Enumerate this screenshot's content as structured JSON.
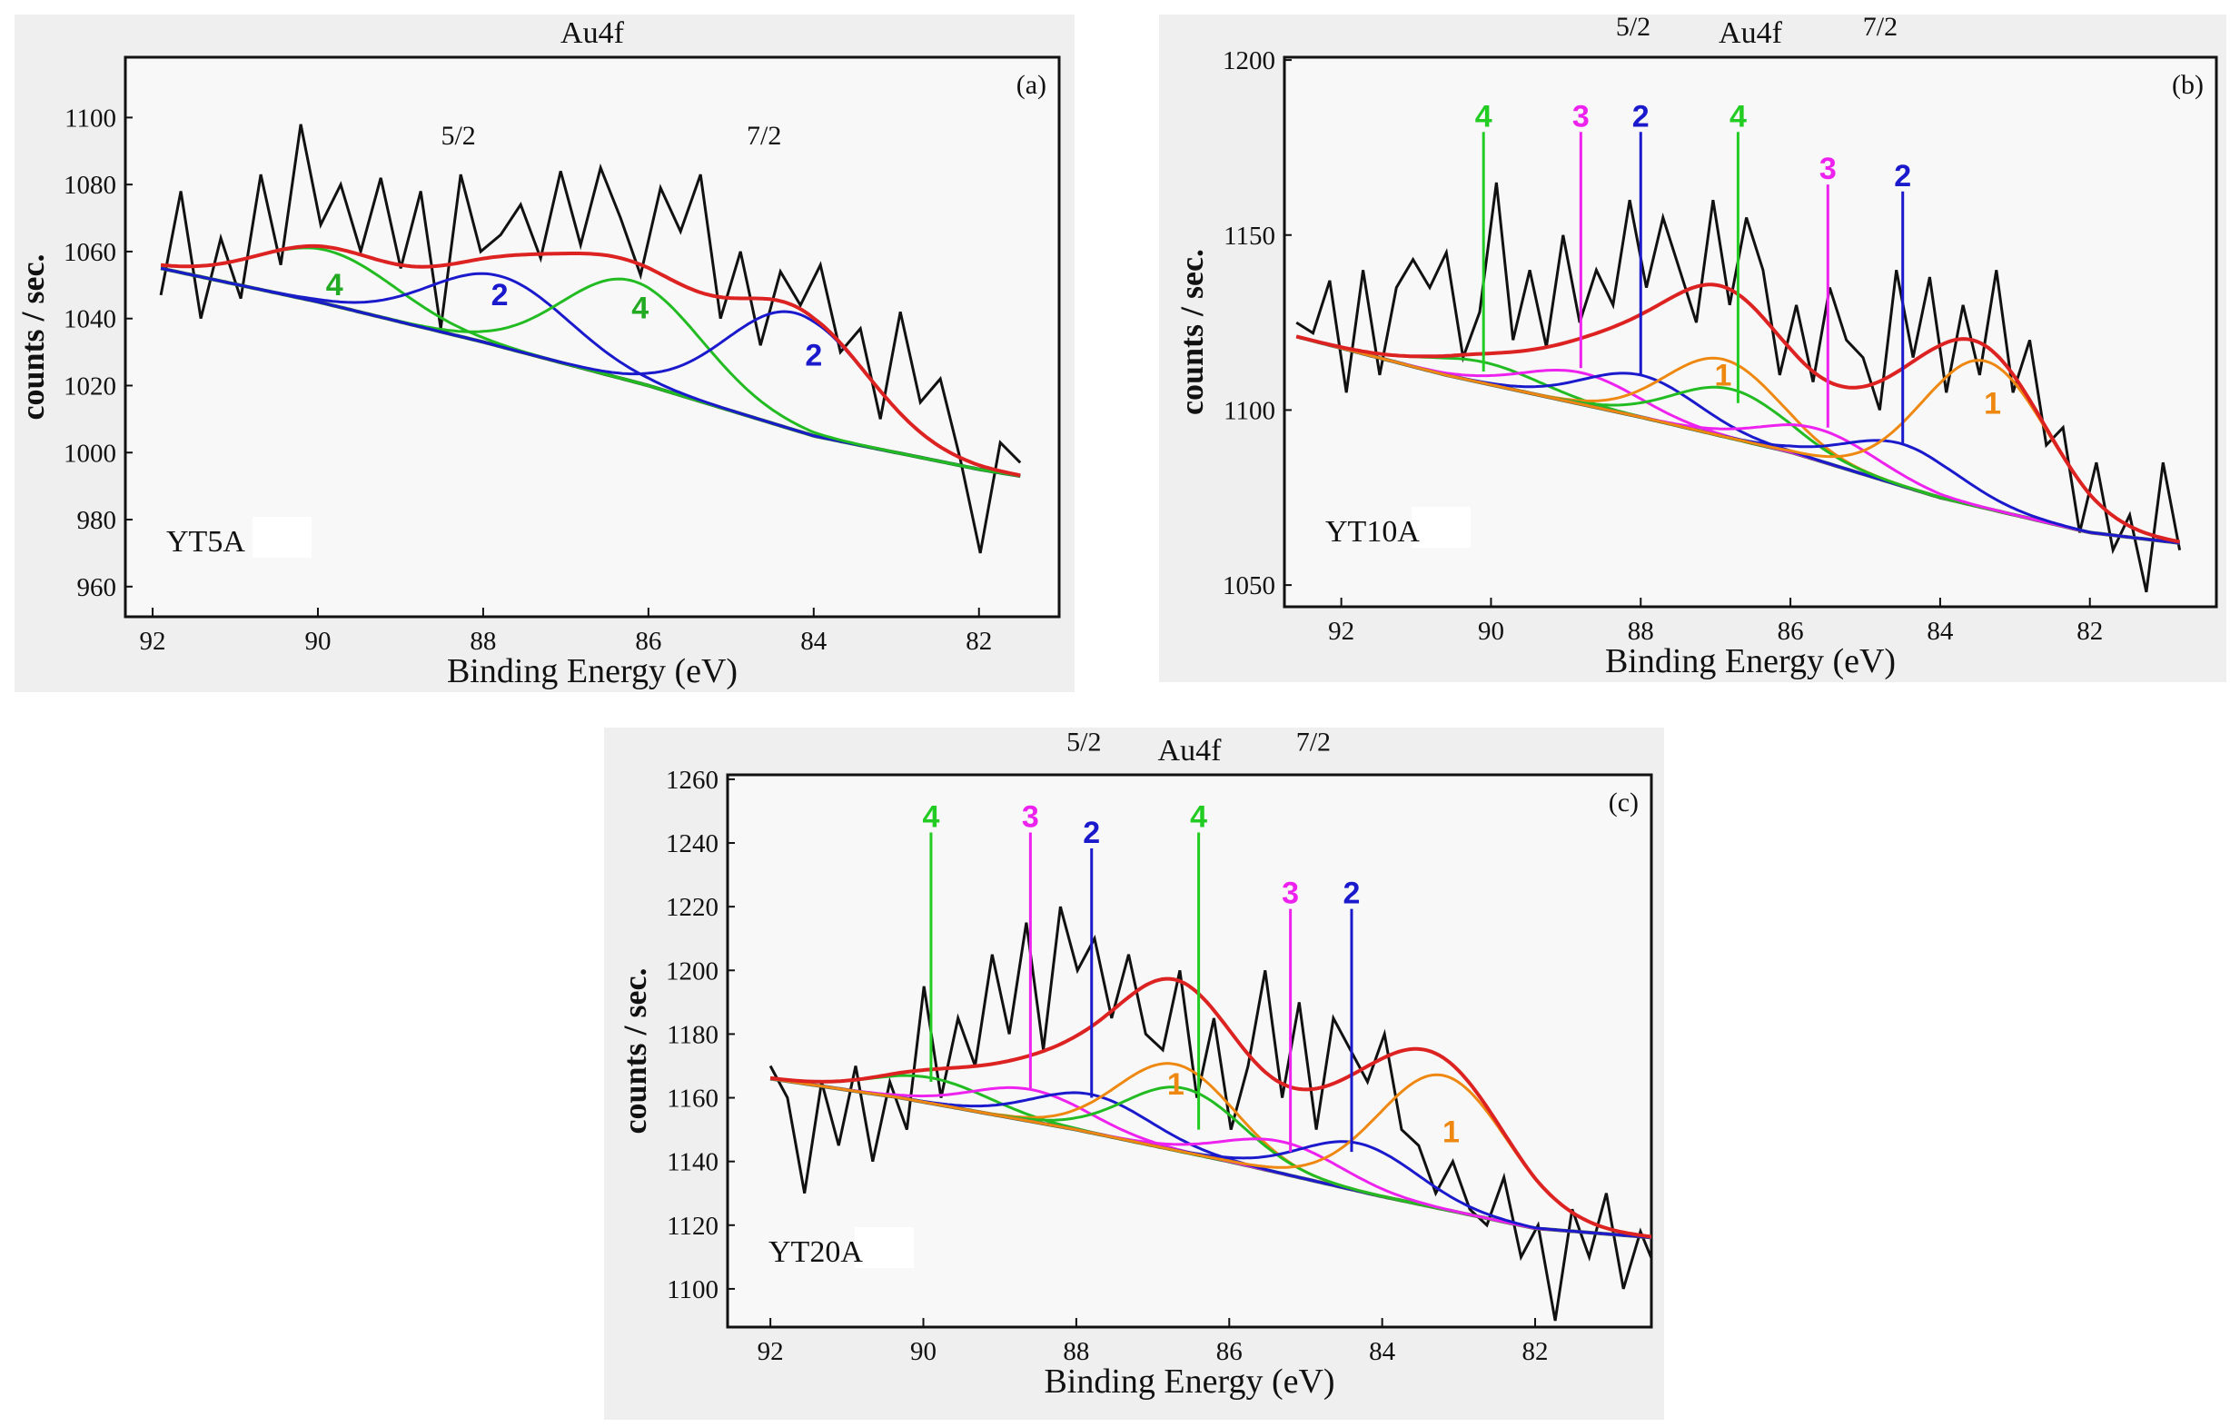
{
  "chart_data": [
    {
      "type": "line",
      "panel_label": "(a)",
      "title": "Au4f",
      "xlabel": "Binding Energy (eV)",
      "ylabel": "counts / sec.",
      "sample": "YT5A",
      "xlim": [
        92.33,
        81.03
      ],
      "ylim": [
        951,
        1118
      ],
      "xticks": [
        92,
        90,
        88,
        86,
        84,
        82
      ],
      "yticks": [
        960,
        980,
        1000,
        1020,
        1040,
        1060,
        1080,
        1100
      ],
      "annotations": [
        {
          "text": "5/2",
          "x": 88.3,
          "y": 1092
        },
        {
          "text": "7/2",
          "x": 84.6,
          "y": 1092
        }
      ],
      "raw_counts": {
        "x_range": [
          91.9,
          81.5
        ],
        "y": [
          1047,
          1078,
          1040,
          1064,
          1046,
          1083,
          1056,
          1098,
          1068,
          1080,
          1060,
          1082,
          1055,
          1078,
          1037,
          1083,
          1060,
          1065,
          1074,
          1058,
          1084,
          1062,
          1085,
          1070,
          1053,
          1079,
          1066,
          1083,
          1040,
          1060,
          1032,
          1054,
          1044,
          1056,
          1030,
          1037,
          1010,
          1042,
          1015,
          1022,
          998,
          970,
          1003,
          997
        ]
      },
      "baseline": {
        "x": [
          91.9,
          90,
          88,
          86,
          84,
          82,
          81.5
        ],
        "y": [
          1055,
          1045,
          1033,
          1020,
          1005,
          995,
          993
        ]
      },
      "components": [
        {
          "id": "4",
          "center": 89.9,
          "height": 16,
          "fwhm": 2.0,
          "color": "#22bb22"
        },
        {
          "id": "2",
          "center": 87.8,
          "height": 21,
          "fwhm": 2.0,
          "color": "#1a1acc"
        },
        {
          "id": "4",
          "center": 86.2,
          "height": 30,
          "fwhm": 2.0,
          "color": "#22bb22"
        },
        {
          "id": "2",
          "center": 84.2,
          "height": 35,
          "fwhm": 2.0,
          "color": "#1a1acc"
        }
      ],
      "envelope_color": "#dd2222",
      "peak_labels": [
        {
          "text": "4",
          "x": 89.8,
          "y": 1047,
          "color": "#22aa22"
        },
        {
          "text": "2",
          "x": 87.8,
          "y": 1044,
          "color": "#1a1acc"
        },
        {
          "text": "4",
          "x": 86.1,
          "y": 1040,
          "color": "#22aa22"
        },
        {
          "text": "2",
          "x": 84.0,
          "y": 1026,
          "color": "#1a1acc"
        }
      ]
    },
    {
      "type": "line",
      "panel_label": "(b)",
      "title": "Au4f",
      "xlabel": "Binding Energy (eV)",
      "ylabel": "counts / sec.",
      "sample": "YT10A",
      "xlim": [
        92.76,
        80.31
      ],
      "ylim": [
        1043.8,
        1200.8
      ],
      "xticks": [
        92,
        90,
        88,
        86,
        84,
        82
      ],
      "yticks": [
        1050,
        1100,
        1150,
        1200
      ],
      "annotations": [
        {
          "text": "5/2",
          "x": 88.1,
          "y": 1207
        },
        {
          "text": "7/2",
          "x": 84.8,
          "y": 1207
        }
      ],
      "raw_counts": {
        "x_range": [
          92.6,
          80.8
        ],
        "y": [
          1125,
          1122,
          1137,
          1105,
          1140,
          1110,
          1135,
          1143,
          1135,
          1145,
          1115,
          1128,
          1165,
          1120,
          1140,
          1118,
          1150,
          1125,
          1140,
          1130,
          1160,
          1135,
          1155,
          1140,
          1125,
          1160,
          1130,
          1155,
          1140,
          1110,
          1130,
          1108,
          1135,
          1120,
          1115,
          1100,
          1140,
          1115,
          1138,
          1105,
          1130,
          1110,
          1140,
          1105,
          1120,
          1090,
          1095,
          1065,
          1085,
          1060,
          1070,
          1048,
          1085,
          1060
        ]
      },
      "baseline": {
        "x": [
          92.6,
          90.6,
          88,
          86,
          84,
          82,
          80.8
        ],
        "y": [
          1121,
          1110,
          1098,
          1088,
          1075,
          1065,
          1062
        ]
      },
      "components": [
        {
          "id": "4",
          "center": 90.1,
          "height": 6,
          "fwhm": 1.8,
          "color": "#22bb22"
        },
        {
          "id": "3",
          "center": 88.8,
          "height": 9,
          "fwhm": 1.8,
          "color": "#ee22ee"
        },
        {
          "id": "2",
          "center": 88.0,
          "height": 12,
          "fwhm": 1.8,
          "color": "#1a1acc"
        },
        {
          "id": "1",
          "center": 86.9,
          "height": 22,
          "fwhm": 1.8,
          "color": "#ee8811"
        },
        {
          "id": "4",
          "center": 86.8,
          "height": 14,
          "fwhm": 1.8,
          "color": "#22bb22"
        },
        {
          "id": "3",
          "center": 85.6,
          "height": 9,
          "fwhm": 1.8,
          "color": "#ee22ee"
        },
        {
          "id": "2",
          "center": 84.5,
          "height": 12,
          "fwhm": 1.8,
          "color": "#1a1acc"
        },
        {
          "id": "1",
          "center": 83.4,
          "height": 42,
          "fwhm": 2.0,
          "color": "#ee8811"
        }
      ],
      "envelope_color": "#dd2222",
      "peak_labels": [
        {
          "text": "4",
          "x": 90.1,
          "y": 1181,
          "line_to": 1111,
          "color": "#22cc22"
        },
        {
          "text": "3",
          "x": 88.8,
          "y": 1181,
          "line_to": 1112,
          "color": "#ee22ee"
        },
        {
          "text": "2",
          "x": 88.0,
          "y": 1181,
          "line_to": 1110,
          "color": "#1a1acc"
        },
        {
          "text": "4",
          "x": 86.7,
          "y": 1181,
          "line_to": 1102,
          "color": "#22cc22"
        },
        {
          "text": "3",
          "x": 85.5,
          "y": 1166,
          "line_to": 1095,
          "color": "#ee22ee"
        },
        {
          "text": "2",
          "x": 84.5,
          "y": 1164,
          "line_to": 1090,
          "color": "#1a1acc"
        },
        {
          "text": "1",
          "x": 86.9,
          "y": 1107,
          "color": "#ee8811"
        },
        {
          "text": "1",
          "x": 83.3,
          "y": 1099,
          "color": "#ee8811"
        }
      ]
    },
    {
      "type": "line",
      "panel_label": "(c)",
      "title": "Au4f",
      "xlabel": "Binding Energy (eV)",
      "ylabel": "counts / sec.",
      "sample": "YT20A",
      "xlim": [
        92.56,
        80.48
      ],
      "ylim": [
        1088,
        1261.4
      ],
      "xticks": [
        92,
        90,
        88,
        86,
        84,
        82
      ],
      "yticks": [
        1100,
        1120,
        1140,
        1160,
        1180,
        1200,
        1220,
        1240,
        1260
      ],
      "annotations": [
        {
          "text": "5/2",
          "x": 87.9,
          "y": 1269
        },
        {
          "text": "7/2",
          "x": 84.9,
          "y": 1269
        }
      ],
      "raw_counts": {
        "x_range": [
          92.0,
          80.4
        ],
        "y": [
          1170,
          1160,
          1130,
          1165,
          1145,
          1170,
          1140,
          1165,
          1150,
          1195,
          1160,
          1185,
          1170,
          1205,
          1180,
          1215,
          1175,
          1220,
          1200,
          1210,
          1185,
          1205,
          1180,
          1175,
          1200,
          1160,
          1185,
          1150,
          1170,
          1200,
          1160,
          1190,
          1150,
          1185,
          1175,
          1165,
          1180,
          1150,
          1145,
          1130,
          1140,
          1125,
          1120,
          1135,
          1110,
          1120,
          1090,
          1125,
          1110,
          1130,
          1100,
          1118,
          1105
        ]
      },
      "baseline": {
        "x": [
          92,
          90.3,
          88,
          86,
          84,
          82,
          80.4
        ],
        "y": [
          1166,
          1160,
          1150,
          1140,
          1129,
          1119,
          1116
        ]
      },
      "components": [
        {
          "id": "4",
          "center": 89.9,
          "height": 8,
          "fwhm": 1.8,
          "color": "#22bb22"
        },
        {
          "id": "3",
          "center": 88.6,
          "height": 10,
          "fwhm": 1.8,
          "color": "#ee22ee"
        },
        {
          "id": "2",
          "center": 87.8,
          "height": 12,
          "fwhm": 1.8,
          "color": "#1a1acc"
        },
        {
          "id": "1",
          "center": 86.7,
          "height": 27,
          "fwhm": 1.8,
          "color": "#ee8811"
        },
        {
          "id": "4",
          "center": 86.6,
          "height": 20,
          "fwhm": 1.8,
          "color": "#22bb22"
        },
        {
          "id": "3",
          "center": 85.3,
          "height": 10,
          "fwhm": 1.8,
          "color": "#ee22ee"
        },
        {
          "id": "2",
          "center": 84.3,
          "height": 15,
          "fwhm": 1.8,
          "color": "#1a1acc"
        },
        {
          "id": "1",
          "center": 83.2,
          "height": 42,
          "fwhm": 2.0,
          "color": "#ee8811"
        }
      ],
      "envelope_color": "#dd2222",
      "peak_labels": [
        {
          "text": "4",
          "x": 89.9,
          "y": 1245,
          "line_to": 1165,
          "color": "#22cc22"
        },
        {
          "text": "3",
          "x": 88.6,
          "y": 1245,
          "line_to": 1163,
          "color": "#ee22ee"
        },
        {
          "text": "2",
          "x": 87.8,
          "y": 1240,
          "line_to": 1160,
          "color": "#1a1acc"
        },
        {
          "text": "4",
          "x": 86.4,
          "y": 1245,
          "line_to": 1150,
          "color": "#22cc22"
        },
        {
          "text": "3",
          "x": 85.2,
          "y": 1221,
          "line_to": 1143,
          "color": "#ee22ee"
        },
        {
          "text": "2",
          "x": 84.4,
          "y": 1221,
          "line_to": 1143,
          "color": "#1a1acc"
        },
        {
          "text": "1",
          "x": 86.7,
          "y": 1161,
          "color": "#ee8811"
        },
        {
          "text": "1",
          "x": 83.1,
          "y": 1146,
          "color": "#ee8811"
        }
      ]
    }
  ]
}
